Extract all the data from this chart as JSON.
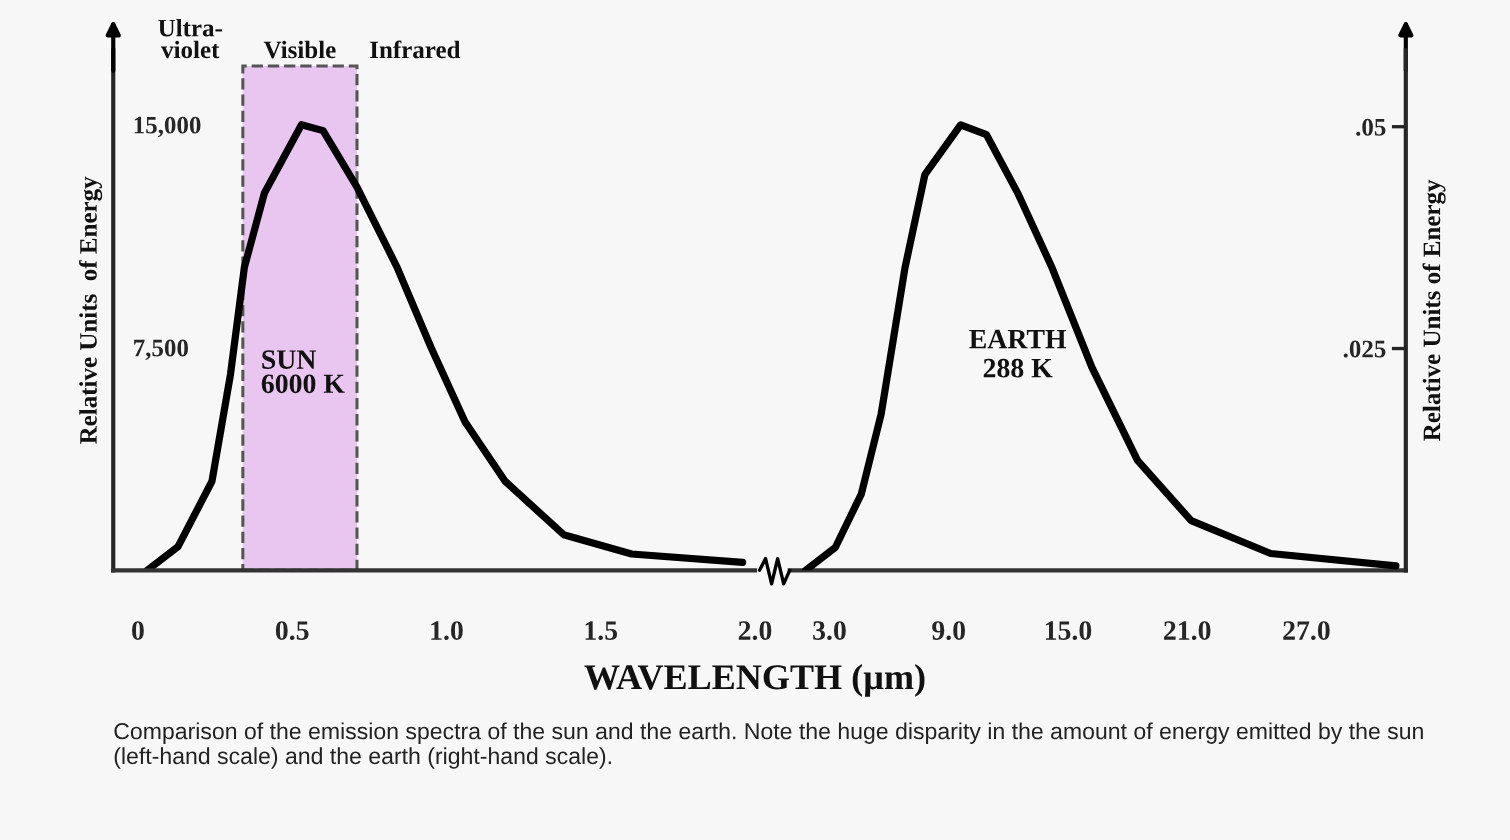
{
  "chart_data": [
    {
      "type": "line",
      "xlabel": "WAVELENGTH (µm)",
      "ylabel": "Relative Units  of Energy",
      "xlim": [
        -0.08,
        2.0
      ],
      "xticks": [
        0,
        {
          "value": 0.5,
          "label": "0.5"
        },
        {
          "value": 1.0,
          "label": "1.0"
        },
        {
          "value": 1.5,
          "label": "1.5"
        },
        {
          "value": 2.0,
          "label": "2.0"
        }
      ],
      "ylim": [
        0,
        17500
      ],
      "yticks": [
        {
          "value": 7500,
          "label": "7,500"
        },
        {
          "value": 15000,
          "label": "15,000"
        }
      ],
      "x": [
        0.03,
        0.13,
        0.24,
        0.3,
        0.345,
        0.41,
        0.53,
        0.6,
        0.71,
        0.84,
        0.95,
        1.06,
        1.19,
        1.38,
        1.6,
        1.96
      ],
      "series": [
        {
          "color": "#000000",
          "values": [
            0,
            800,
            3000,
            6600,
            10200,
            12700,
            15000,
            14800,
            12900,
            10200,
            7500,
            5000,
            3000,
            1200,
            550,
            270
          ]
        }
      ],
      "bands": [
        {
          "axis": "x",
          "from": 0.34,
          "to": 0.71,
          "label": "Visible",
          "color": "#e9c6ef"
        }
      ],
      "annotations": [
        "Ultra-\nviolet",
        "Infrared",
        "SUN\n6000 K"
      ],
      "grid": false,
      "legend": false
    },
    {
      "type": "line",
      "y2label": "Relative Units of Energy",
      "xlim": [
        1.0,
        32.0
      ],
      "xticks": [
        {
          "value": 3,
          "label": "3.0"
        },
        {
          "value": 9,
          "label": "9.0"
        },
        {
          "value": 15,
          "label": "15.0"
        },
        {
          "value": 21,
          "label": "21.0"
        },
        {
          "value": 27,
          "label": "27.0"
        }
      ],
      "y2lim": [
        0,
        0.0586
      ],
      "y2ticks": [
        {
          "value": 0.025,
          "label": ".025"
        },
        {
          "value": 0.05,
          "label": ".05"
        }
      ],
      "x": [
        1.8,
        3.3,
        4.6,
        5.6,
        6.8,
        7.8,
        9.6,
        10.9,
        12.5,
        14.2,
        16.2,
        18.5,
        21.2,
        25.2,
        31.5
      ],
      "series": [
        {
          "color": "#000000",
          "axis": "y2",
          "values": [
            0,
            0.0026,
            0.0086,
            0.0176,
            0.0341,
            0.0446,
            0.0502,
            0.0491,
            0.0424,
            0.0341,
            0.0229,
            0.0124,
            0.0056,
            0.0019,
            0.0005
          ]
        }
      ],
      "annotations": [
        "EARTH\n288 K",
        "Comparison of the emission spectra of the sun and the earth. Note the huge disparity in the amount of energy emitted by the sun (left-hand scale) and the earth (right-hand scale)."
      ],
      "grid": false,
      "legend": false
    }
  ]
}
